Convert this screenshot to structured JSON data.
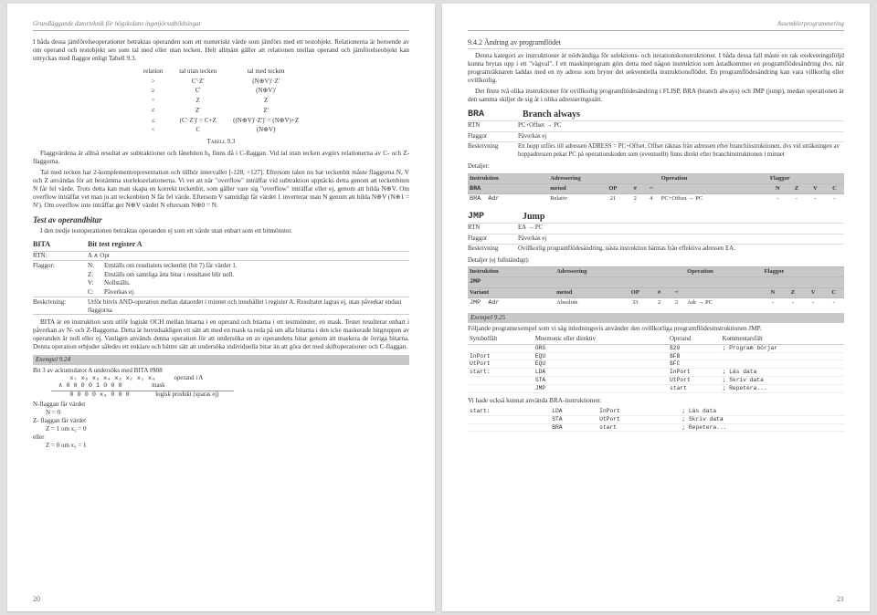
{
  "left": {
    "header": "Grundläggande datorteknik för högskolans ingenjörsutbildningar",
    "pagenum": "20",
    "p1": "I båda dessa jämförelseoperationer betraktas operanden som ett numeriskt värde som jämförs med ett testobjekt. Relationerna är beroende av om operand och testobjekt ses som tal med eller utan tecken. Helt allmänt gäller att relationen mellan operand och jämförelseobjekt kan uttryckas med flaggor enligt Tabell 9.3.",
    "relHead": {
      "c1": "relation",
      "c2": "tal utan tecken",
      "c3": "tal med tecken"
    },
    "rel": [
      {
        "r": ">",
        "u": "C'·Z'",
        "s": "(N⊕V)'·Z'"
      },
      {
        "r": "≥",
        "u": "C'",
        "s": "(N⊕V)'"
      },
      {
        "r": "=",
        "u": "Z",
        "s": "Z"
      },
      {
        "r": "≠",
        "u": "Z'",
        "s": "Z'"
      },
      {
        "r": "≤",
        "u": "(C'·Z')' = C+Z",
        "s": "((N⊕V)'·Z')' = (N⊕V)+Z"
      },
      {
        "r": "<",
        "u": "C",
        "s": "(N⊕V)"
      }
    ],
    "tabCaption": "Tabell 9.3",
    "p2": "Flaggvärdena är alltså resultat av subtraktioner och lånebiten b₈ finns då i C-flaggan. Vid tal utan tecken avgörs relationerna av C- och Z-flaggorna.",
    "p3": "Tal med tecken har 2-komplementrepresentation och tillhör intervallet [-128, +127]. Eftersom talen nu har teckenbit måste flaggorna N, V och Z användas för att bestämma storleksrelationerna. Vi vet att när \"overflow\" inträffar vid subtraktion upptäcks detta genom att teckenbiten N får fel värde. Trots detta kan man skapa en korrekt teckenbit, som gäller vare sig \"overflow\" inträffar eller ej, genom att bilda N⊕V. Om overflow inträffar vet man ju att teckenbiten N får fel värde. Eftersom V samtidigt får värdet 1 inverterar man N genom att bilda N⊕V (N⊕1 = N'). Om overflow inte inträffar ger N⊕V värdet N eftersom N⊕0 = N.",
    "sect": "Test av operandbitar",
    "p4": "I den tredje testoperationen betraktas operanden ej som ett värde utan enbart som ett bitmönster.",
    "bita": {
      "abbr": "BITA",
      "name": "Bit test register A"
    },
    "rtn": {
      "k": "RTN:",
      "v": "A ∧ Opr"
    },
    "flagK": "Flaggor:",
    "flags": [
      {
        "f": "N:",
        "d": "Ettställs om resultatets teckenbit (bit 7) får värdet 1."
      },
      {
        "f": "Z:",
        "d": "Ettställs om samtliga åtta bitar i resultatet blir noll."
      },
      {
        "f": "V:",
        "d": "Nollställs."
      },
      {
        "f": "C:",
        "d": "Påverkas ej."
      }
    ],
    "besk": {
      "k": "Beskrivning:",
      "v": "Utför bitvis AND-operation mellan dataordet i minnet och innehållet i register A. Resultatet lagras ej, utan påverkar endast flaggorna"
    },
    "p5": "BITA är en instruktion som utför logiskt OCH mellan bitarna i en operand och bitarna i ett testmönster, en mask. Testet resulterar enbart i påverkan av N- och Z-flaggorna. Detta är huvudsakligen ett sätt att med en mask ta reda på om alla bitarna i den icke maskerade bitgruppen av operanden är noll eller ej. Vanligen används denna operation för att undersöka en av operandens bitar genom att maskera de övriga bitarna. Denna operation erbjuder således ett enklare och bättre sätt att undersöka individuella bitar än att göra det med skiftoperationer och C-flaggan.",
    "exLabel": "Exempel 9.24",
    "exLine1": "Bit 3 av ackumulator A undersöks med BITA  #$08",
    "exL2a": "x₇ x₆ x₅ x₄ x₃ x₂ x₁ x₀",
    "exL2b": "operand i A",
    "exL3a": "∧ 0 0 0 0 1 0 0 0",
    "exL3b": "mask",
    "exL4a": "  0 0 0 0 x₃ 0 0 0",
    "exL4b": "logisk produkt (sparas ej)",
    "exN": "N-flaggan får värdet",
    "exN0": "N = 0",
    "exZ": "Z- flaggan får värdet",
    "exZ1": "Z = 1 om x₃ = 0",
    "exEller": "eller",
    "exZ0": "Z = 0 om x₃ = 1"
  },
  "right": {
    "header": "Assemblerprogrammering",
    "pagenum": "21",
    "h2": "9.4.2  Ändring av programflödet",
    "p1": "Denna kategori av instruktioner är nödvändiga för selektions- och iterationskonstruktioner. I båda dessa fall måste en rak exekveringsföljd kunna brytas upp i ett \"vägval\". I ett maskinprogram görs detta med någon instruktion som åstadkommer en programflödesändring dvs. när programräknaren laddas med en ny adress som bryter det sekventiella instruktionsflödet. En programflödesändring kan vara villkorlig eller ovillkorlig.",
    "p2": "Det finns två olika instruktioner för ovillkorlig programflödesändring i FLISP, BRA (branch always) och JMP (jump), medan operationen är den samma skiljer de sig åt i olika adresseringssätt.",
    "bra": {
      "abbr": "BRA",
      "name": "Branch always"
    },
    "braRows": [
      {
        "k": "RTN",
        "v": "PC+Offset → PC"
      },
      {
        "k": "Flaggor",
        "v": "Påverkas ej"
      },
      {
        "k": "Beskrivning",
        "v": "Ett hopp utförs till adressen ADRESS = PC+Offset. Offset räknas från adressen efter branchinstruktionen, dvs vid uträkningen av hoppadressen pekar PC på operationskoden som (eventuellt) finns direkt efter branchinstruktionen i minnet"
      }
    ],
    "detLabel": "Detaljer:",
    "opHead": {
      "c1": "Instruktion",
      "c2": "Adressering",
      "c3": "Operation",
      "c4": "Flaggor"
    },
    "opSub": {
      "m": "metod",
      "op": "OP",
      "h": "#",
      "t": "~",
      "n": "N",
      "z": "Z",
      "v": "V",
      "c": "C"
    },
    "braOp": {
      "instr": "BRA  Adr",
      "metod": "Relativ",
      "op": "21",
      "hash": "2",
      "tilde": "4",
      "oper": "PC+Offset → PC",
      "n": "-",
      "z": "-",
      "v": "-",
      "c": "-"
    },
    "jmp": {
      "abbr": "JMP",
      "name": "Jump"
    },
    "jmpRows": [
      {
        "k": "RTN",
        "v": "EA → PC"
      },
      {
        "k": "Flaggor",
        "v": "Påverkas ej"
      },
      {
        "k": "Beskrivning",
        "v": "Ovillkorlig programflödesändring, nästa instruktion hämtas från effektiva adressen EA."
      }
    ],
    "detLabel2": "Detaljer (ej fullständigt):",
    "jmpVar": "Variant",
    "jmpOp": {
      "instr": "JMP  Adr",
      "metod": "Absolute",
      "op": "33",
      "hash": "2",
      "tilde": "2",
      "oper": "Adr → PC",
      "n": "-",
      "z": "-",
      "v": "-",
      "c": "-"
    },
    "ex925": "Exempel 9.25",
    "p3": "Följande programexempel som vi såg inledningsvis använder den ovillkorliga programflödesinstruktionen JMP.",
    "asmHead": {
      "c1": "Symbolfält",
      "c2": "Mnemonic eller direktiv",
      "c3": "Operand",
      "c4": "Kommentarsfält"
    },
    "asm1": [
      {
        "s": "",
        "m": "ORG",
        "o": "$20",
        "c": "; Program börjar"
      },
      {
        "s": "InPort",
        "m": "EQU",
        "o": "$FB",
        "c": ""
      },
      {
        "s": "UtPort",
        "m": "EQU",
        "o": "$FC",
        "c": ""
      },
      {
        "s": "start:",
        "m": "LDA",
        "o": "InPort",
        "c": "; Läs data"
      },
      {
        "s": "",
        "m": "STA",
        "o": "UtPort",
        "c": "; Skriv data"
      },
      {
        "s": "",
        "m": "JMP",
        "o": "start",
        "c": "; Repetera..."
      }
    ],
    "p4": "Vi hade också kunnat använda BRA-instruktionen:",
    "asm2": [
      {
        "s": "start:",
        "m": "LDA",
        "o": "InPort",
        "c": "; Läs data"
      },
      {
        "s": "",
        "m": "STA",
        "o": "UtPort",
        "c": "; Skriv data"
      },
      {
        "s": "",
        "m": "BRA",
        "o": "start",
        "c": "; Repetera..."
      }
    ]
  }
}
